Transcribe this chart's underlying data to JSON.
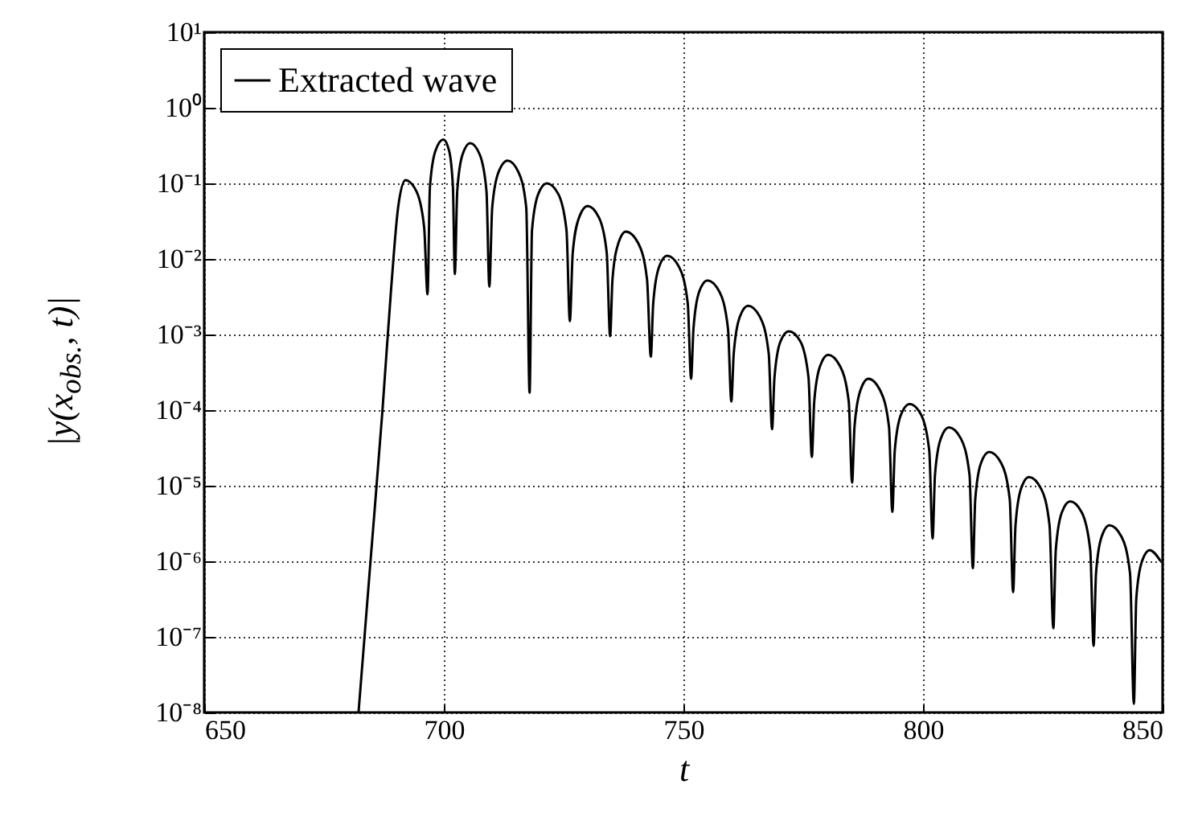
{
  "chart_data": {
    "type": "line",
    "xlabel": "t",
    "ylabel": "|y(x$_{obs.}$, t)|",
    "x": [
      682.2,
      684.7,
      687.2,
      689,
      690.5,
      692,
      694.3,
      695.9,
      696.6,
      697.1,
      698.25,
      699.9,
      701.1,
      701.9,
      702.3,
      702.8,
      703.9,
      705.5,
      707.5,
      708.9,
      709.5,
      710.1,
      711.4,
      713.3,
      715.6,
      717.2,
      717.9,
      718.4,
      719.7,
      721.5,
      723.9,
      725.6,
      726.3,
      726.9,
      728.2,
      730,
      732.4,
      734.0,
      734.7,
      735.2,
      736.4,
      738,
      740.6,
      742.4,
      743.2,
      743.7,
      744.9,
      746.6,
      749.1,
      750.9,
      751.6,
      752.1,
      753.3,
      755,
      757.5,
      759.3,
      760,
      760.5,
      761.75,
      763.5,
      766,
      767.8,
      768.5,
      769,
      770.25,
      772,
      774.4,
      776.1,
      776.8,
      777.3,
      778.5,
      780.2,
      782.7,
      784.5,
      785.2,
      785.7,
      786.9,
      788.6,
      791.1,
      792.9,
      793.6,
      794.1,
      795.4,
      797.2,
      799.6,
      801.3,
      802,
      802.5,
      803.7,
      805.4,
      807.9,
      809.7,
      810.4,
      810.9,
      812.1,
      813.8,
      816.3,
      818.1,
      818.8,
      819.3,
      820.45,
      822.1,
      824.65,
      826.4,
      827.2,
      827.7,
      828.95,
      830.7,
      833.15,
      834.9,
      835.6,
      836.1,
      837.25,
      838.9,
      841.45,
      843.2,
      844,
      844.5,
      845.65,
      847.3,
      849.6
    ],
    "series": [
      {
        "name": "Extracted wave",
        "color": "#000000",
        "values": [
          1e-08,
          1e-06,
          0.0001,
          0.004,
          0.05,
          0.11,
          0.078,
          0.026,
          0.0034,
          0.089,
          0.27,
          0.38,
          0.27,
          0.089,
          0.0063,
          0.079,
          0.24,
          0.34,
          0.24,
          0.079,
          0.0043,
          0.048,
          0.14,
          0.2,
          0.14,
          0.048,
          0.00017,
          0.024,
          0.072,
          0.1,
          0.072,
          0.024,
          0.0015,
          0.012,
          0.035,
          0.05,
          0.035,
          0.012,
          0.00095,
          0.0054,
          0.016,
          0.023,
          0.016,
          0.0054,
          0.00051,
          0.0026,
          0.0078,
          0.011,
          0.0078,
          0.0026,
          0.00026,
          0.0012,
          0.0037,
          0.0052,
          0.0037,
          0.0012,
          0.00013,
          0.00056,
          0.0017,
          0.0024,
          0.0017,
          0.00056,
          5.6e-05,
          0.00027,
          0.00081,
          0.0011,
          0.00081,
          0.00027,
          2.4e-05,
          0.00013,
          0.00038,
          0.00054,
          0.00038,
          0.00013,
          1.1e-05,
          6e-05,
          0.00018,
          0.00026,
          0.00018,
          6e-05,
          4.5e-06,
          2.9e-05,
          8.7e-05,
          0.00012,
          8.7e-05,
          2.9e-05,
          2e-06,
          1.4e-05,
          4.2e-05,
          5.9e-05,
          4.2e-05,
          1.4e-05,
          8.1e-07,
          6.6e-06,
          2e-05,
          2.8e-05,
          2e-05,
          6.6e-06,
          3.9e-07,
          3e-06,
          9.1e-06,
          1.3e-05,
          9.1e-06,
          3e-06,
          1.3e-07,
          1.4e-06,
          4.4e-06,
          6.2e-06,
          4.4e-06,
          1.4e-06,
          7.6e-08,
          6.9e-07,
          2.1e-06,
          3e-06,
          2.1e-06,
          6.9e-07,
          1.3e-08,
          3.2e-07,
          9.8e-07,
          1.4e-06,
          1e-06
        ]
      }
    ],
    "xlim": [
      650,
      850
    ],
    "xticks": [
      650,
      700,
      750,
      800,
      850
    ],
    "ylim": [
      1e-08,
      10
    ],
    "yticks": [
      {
        "value": 10,
        "label": "10¹"
      },
      {
        "value": 1,
        "label": "10⁰"
      },
      {
        "value": 0.1,
        "label": "10⁻¹"
      },
      {
        "value": 0.01,
        "label": "10⁻²"
      },
      {
        "value": 0.001,
        "label": "10⁻³"
      },
      {
        "value": 0.0001,
        "label": "10⁻⁴"
      },
      {
        "value": 1e-05,
        "label": "10⁻⁵"
      },
      {
        "value": 1e-06,
        "label": "10⁻⁶"
      },
      {
        "value": 1e-07,
        "label": "10⁻⁷"
      },
      {
        "value": 1e-08,
        "label": "10⁻⁸"
      }
    ],
    "log": "y",
    "grid": true,
    "line_style": "solid",
    "legend": "top left"
  }
}
